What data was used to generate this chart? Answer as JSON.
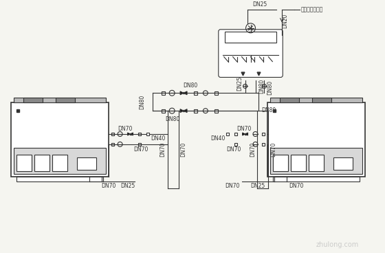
{
  "bg_color": "#f5f5f0",
  "line_color": "#333333",
  "annotation": "接自来水供水器",
  "labels": {
    "DN25_top": "DN25",
    "DN20": "DN20",
    "DN25_mid": "DN25",
    "DN80_left": "DN80",
    "DN80_top": "DN80",
    "DN80_bot1": "DN80",
    "DN80_bot2": "DN80",
    "DN70_ll": "DN70",
    "DN70_lr": "DN70",
    "DN70_rl": "DN70",
    "DN70_rr": "DN70",
    "DN70_left_top": "DN70",
    "DN40_left": "DN40",
    "DN25_left_bot": "DN25",
    "DN70_left_bot": "DN70",
    "DN70_right_top": "DN70",
    "DN40_right": "DN40",
    "DN25_right_bot": "DN25",
    "DN70_right_bot": "DN70"
  }
}
